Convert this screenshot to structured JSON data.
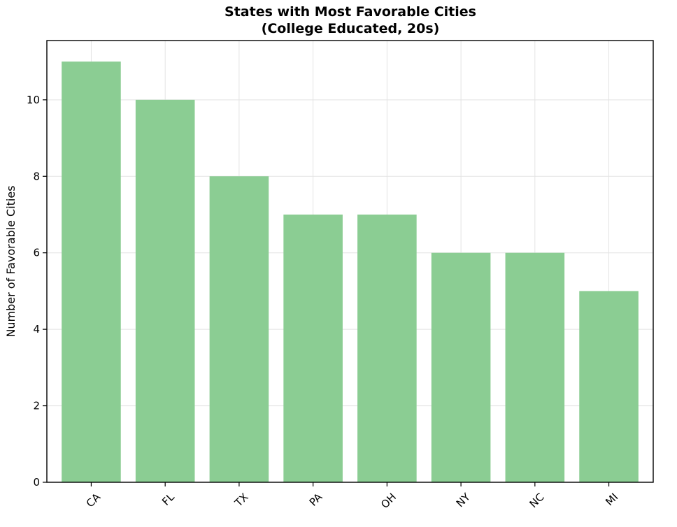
{
  "chart_data": {
    "type": "bar",
    "title": [
      "States with Most Favorable Cities",
      "(College Educated, 20s)"
    ],
    "xlabel": "",
    "ylabel": "Number of Favorable Cities",
    "categories": [
      "CA",
      "FL",
      "TX",
      "PA",
      "OH",
      "NY",
      "NC",
      "MI"
    ],
    "values": [
      11,
      10,
      8,
      7,
      7,
      6,
      6,
      5
    ],
    "ylim": [
      0,
      11.55
    ],
    "yticks": [
      0,
      2,
      4,
      6,
      8,
      10
    ],
    "grid": true,
    "bar_color": "#8bcd93",
    "xtick_rotation": -45
  }
}
